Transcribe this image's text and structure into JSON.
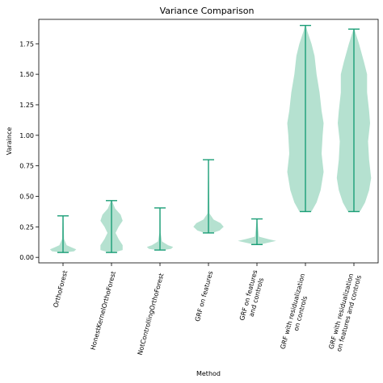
{
  "chart_data": {
    "type": "violin",
    "title": "Variance Comparison",
    "xlabel": "Method",
    "ylabel": "Varaince",
    "ylim": [
      -0.045,
      1.95
    ],
    "yticks": [
      "0.00",
      "0.25",
      "0.50",
      "0.75",
      "1.00",
      "1.25",
      "1.50",
      "1.75"
    ],
    "ytick_values": [
      0,
      0.25,
      0.5,
      0.75,
      1.0,
      1.25,
      1.5,
      1.75
    ],
    "tick_rotation_deg": -75,
    "grid": false,
    "fill_color": "#a8dcc8",
    "line_color": "#1b9e77",
    "categories": [
      [
        "OrthoForest"
      ],
      [
        "HonestKernelOrthoForest"
      ],
      [
        "NotControllingOrthoForest"
      ],
      [
        "GRF on features"
      ],
      [
        "GRF on features",
        "and controls"
      ],
      [
        "GRF with residualization",
        "on controls"
      ],
      [
        "GRF with residualization",
        "on features and controls"
      ]
    ],
    "series": [
      {
        "min": 0.04,
        "max": 0.34,
        "profile": [
          [
            0.04,
            0.1
          ],
          [
            0.05,
            0.55
          ],
          [
            0.065,
            0.65
          ],
          [
            0.08,
            0.45
          ],
          [
            0.1,
            0.18
          ],
          [
            0.15,
            0.05
          ],
          [
            0.34,
            0.02
          ]
        ]
      },
      {
        "min": 0.04,
        "max": 0.465,
        "profile": [
          [
            0.04,
            0.1
          ],
          [
            0.06,
            0.55
          ],
          [
            0.1,
            0.55
          ],
          [
            0.15,
            0.35
          ],
          [
            0.2,
            0.2
          ],
          [
            0.25,
            0.35
          ],
          [
            0.3,
            0.55
          ],
          [
            0.35,
            0.45
          ],
          [
            0.4,
            0.18
          ],
          [
            0.465,
            0.02
          ]
        ]
      },
      {
        "min": 0.06,
        "max": 0.405,
        "profile": [
          [
            0.06,
            0.15
          ],
          [
            0.07,
            0.55
          ],
          [
            0.085,
            0.65
          ],
          [
            0.1,
            0.4
          ],
          [
            0.13,
            0.1
          ],
          [
            0.2,
            0.03
          ],
          [
            0.405,
            0.02
          ]
        ]
      },
      {
        "min": 0.2,
        "max": 0.8,
        "profile": [
          [
            0.2,
            0.2
          ],
          [
            0.22,
            0.55
          ],
          [
            0.25,
            0.75
          ],
          [
            0.28,
            0.6
          ],
          [
            0.31,
            0.25
          ],
          [
            0.36,
            0.05
          ],
          [
            0.8,
            0.01
          ]
        ]
      },
      {
        "min": 0.105,
        "max": 0.315,
        "profile": [
          [
            0.105,
            0.15
          ],
          [
            0.12,
            0.55
          ],
          [
            0.135,
            0.95
          ],
          [
            0.15,
            0.55
          ],
          [
            0.17,
            0.1
          ],
          [
            0.315,
            0.01
          ]
        ]
      },
      {
        "min": 0.375,
        "max": 1.9,
        "profile": [
          [
            0.375,
            0.3
          ],
          [
            0.45,
            0.55
          ],
          [
            0.55,
            0.75
          ],
          [
            0.7,
            0.9
          ],
          [
            0.85,
            0.8
          ],
          [
            1.0,
            0.85
          ],
          [
            1.1,
            0.9
          ],
          [
            1.2,
            0.8
          ],
          [
            1.35,
            0.7
          ],
          [
            1.5,
            0.55
          ],
          [
            1.65,
            0.45
          ],
          [
            1.75,
            0.3
          ],
          [
            1.85,
            0.1
          ],
          [
            1.9,
            0.02
          ]
        ]
      },
      {
        "min": 0.375,
        "max": 1.87,
        "profile": [
          [
            0.375,
            0.3
          ],
          [
            0.45,
            0.55
          ],
          [
            0.55,
            0.75
          ],
          [
            0.65,
            0.85
          ],
          [
            0.8,
            0.75
          ],
          [
            0.95,
            0.7
          ],
          [
            1.1,
            0.8
          ],
          [
            1.2,
            0.75
          ],
          [
            1.35,
            0.65
          ],
          [
            1.5,
            0.65
          ],
          [
            1.6,
            0.5
          ],
          [
            1.75,
            0.25
          ],
          [
            1.87,
            0.02
          ]
        ]
      }
    ]
  }
}
